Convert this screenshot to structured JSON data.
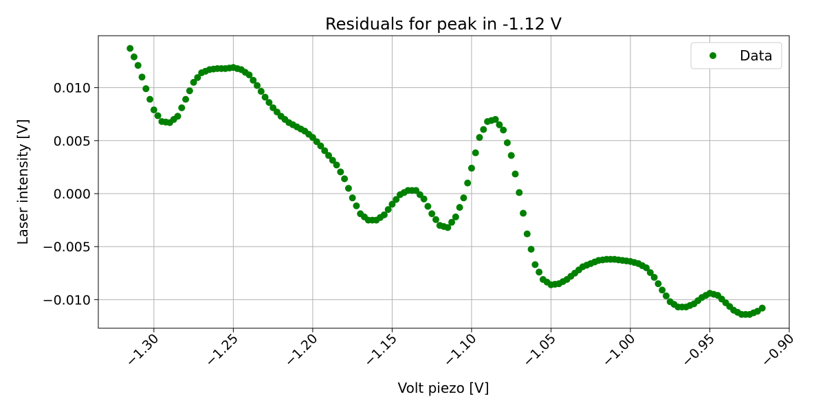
{
  "chart_data": {
    "type": "scatter",
    "title": "Residuals for peak in -1.12 V",
    "xlabel": "Volt piezo [V]",
    "ylabel": "Laser intensity [V]",
    "xlim": [
      -1.335,
      -0.9
    ],
    "ylim": [
      -0.0127,
      0.0149
    ],
    "x_ticks": [
      -1.3,
      -1.25,
      -1.2,
      -1.15,
      -1.1,
      -1.05,
      -1.0,
      -0.95,
      -0.9
    ],
    "x_tick_labels": [
      "−1.30",
      "−1.25",
      "−1.20",
      "−1.15",
      "−1.10",
      "−1.05",
      "−1.00",
      "−0.95",
      "−0.90"
    ],
    "y_ticks": [
      0.01,
      0.005,
      0.0,
      -0.005,
      -0.01
    ],
    "y_tick_labels": [
      "0.010",
      "0.005",
      "0.000",
      "−0.005",
      "−0.010"
    ],
    "grid": true,
    "legend_position": "top-right",
    "marker_color": "#008000",
    "series": [
      {
        "name": "Data",
        "points": [
          [
            -1.315,
            0.0137
          ],
          [
            -1.31,
            0.0121
          ],
          [
            -1.305,
            0.0099
          ],
          [
            -1.3,
            0.0079
          ],
          [
            -1.295,
            0.0068
          ],
          [
            -1.29,
            0.0067
          ],
          [
            -1.285,
            0.0073
          ],
          [
            -1.28,
            0.0089
          ],
          [
            -1.275,
            0.0105
          ],
          [
            -1.27,
            0.0114
          ],
          [
            -1.265,
            0.0117
          ],
          [
            -1.26,
            0.0118
          ],
          [
            -1.255,
            0.0118
          ],
          [
            -1.25,
            0.0119
          ],
          [
            -1.245,
            0.0117
          ],
          [
            -1.24,
            0.0112
          ],
          [
            -1.235,
            0.0102
          ],
          [
            -1.23,
            0.0091
          ],
          [
            -1.225,
            0.0081
          ],
          [
            -1.22,
            0.0073
          ],
          [
            -1.215,
            0.0067
          ],
          [
            -1.21,
            0.0063
          ],
          [
            -1.205,
            0.0059
          ],
          [
            -1.2,
            0.0053
          ],
          [
            -1.195,
            0.0045
          ],
          [
            -1.19,
            0.0036
          ],
          [
            -1.185,
            0.0027
          ],
          [
            -1.18,
            0.0014
          ],
          [
            -1.175,
            -0.0004
          ],
          [
            -1.17,
            -0.0019
          ],
          [
            -1.165,
            -0.0025
          ],
          [
            -1.16,
            -0.0025
          ],
          [
            -1.155,
            -0.002
          ],
          [
            -1.15,
            -0.001
          ],
          [
            -1.145,
            -0.0001
          ],
          [
            -1.14,
            0.0003
          ],
          [
            -1.135,
            0.0003
          ],
          [
            -1.13,
            -0.0005
          ],
          [
            -1.125,
            -0.0019
          ],
          [
            -1.12,
            -0.003
          ],
          [
            -1.115,
            -0.0032
          ],
          [
            -1.11,
            -0.0022
          ],
          [
            -1.105,
            -0.0004
          ],
          [
            -1.1,
            0.0024
          ],
          [
            -1.095,
            0.0053
          ],
          [
            -1.09,
            0.0068
          ],
          [
            -1.085,
            0.007
          ],
          [
            -1.08,
            0.006
          ],
          [
            -1.075,
            0.0036
          ],
          [
            -1.07,
            0.0001
          ],
          [
            -1.065,
            -0.0038
          ],
          [
            -1.06,
            -0.0067
          ],
          [
            -1.055,
            -0.0081
          ],
          [
            -1.05,
            -0.0086
          ],
          [
            -1.045,
            -0.0085
          ],
          [
            -1.04,
            -0.0081
          ],
          [
            -1.035,
            -0.0075
          ],
          [
            -1.03,
            -0.0069
          ],
          [
            -1.025,
            -0.0066
          ],
          [
            -1.02,
            -0.0063
          ],
          [
            -1.015,
            -0.0062
          ],
          [
            -1.01,
            -0.0062
          ],
          [
            -1.005,
            -0.0063
          ],
          [
            -1.0,
            -0.0064
          ],
          [
            -0.995,
            -0.0066
          ],
          [
            -0.99,
            -0.007
          ],
          [
            -0.985,
            -0.0079
          ],
          [
            -0.98,
            -0.0091
          ],
          [
            -0.975,
            -0.0102
          ],
          [
            -0.97,
            -0.0107
          ],
          [
            -0.965,
            -0.0107
          ],
          [
            -0.96,
            -0.0104
          ],
          [
            -0.955,
            -0.0098
          ],
          [
            -0.95,
            -0.0094
          ],
          [
            -0.945,
            -0.0096
          ],
          [
            -0.94,
            -0.0103
          ],
          [
            -0.935,
            -0.011
          ],
          [
            -0.93,
            -0.0114
          ],
          [
            -0.925,
            -0.0114
          ],
          [
            -0.92,
            -0.0111
          ],
          [
            -0.917,
            -0.0108
          ]
        ]
      }
    ]
  }
}
